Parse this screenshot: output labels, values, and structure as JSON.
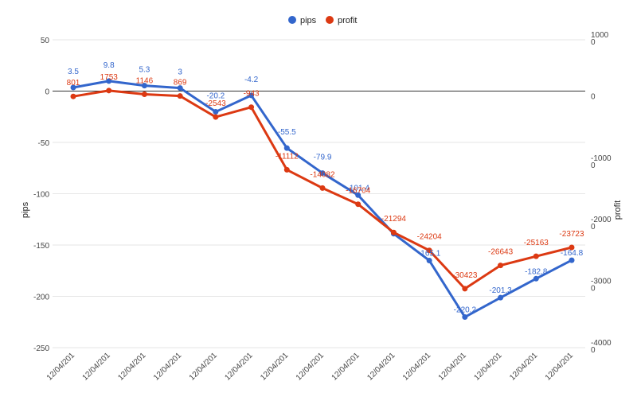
{
  "chart_data": {
    "type": "line",
    "title": "",
    "legend": {
      "position": "top-center",
      "items": [
        "pips",
        "profit"
      ]
    },
    "categories": [
      "12/04/201",
      "12/04/201",
      "12/04/201",
      "12/04/201",
      "12/04/201",
      "12/04/201",
      "12/04/201",
      "12/04/201",
      "12/04/201",
      "12/04/201",
      "12/04/201",
      "12/04/201",
      "12/04/201",
      "12/04/201",
      "12/04/201"
    ],
    "series": [
      {
        "name": "pips",
        "axis": "left",
        "color": "#3366cc",
        "values": [
          3.5,
          9.8,
          5.3,
          3,
          -20.2,
          -4.2,
          -55.5,
          -79.9,
          -101.4,
          -139,
          -165.1,
          -220.2,
          -201.3,
          -182.8,
          -164.8
        ],
        "labels": [
          "3.5",
          "9.8",
          "5.3",
          "3",
          "-20.2",
          "-4.2",
          "-55.5",
          "-79.9",
          "-101.4",
          "",
          "-165.1",
          "-220.2",
          "-201.3",
          "-182.8",
          "-164.8"
        ]
      },
      {
        "name": "profit",
        "axis": "right",
        "color": "#dc3912",
        "values": [
          801,
          1753,
          1146,
          869,
          -2543,
          -943,
          -11112,
          -14082,
          -16704,
          -21294,
          -24204,
          -30423,
          -26643,
          -25163,
          -23723
        ],
        "labels": [
          "801",
          "1753",
          "1146",
          "869",
          "-2543",
          "-943",
          "-11112",
          "-14082",
          "-16704",
          "-21294",
          "-24204",
          "-30423",
          "-26643",
          "-25163",
          "-23723"
        ]
      }
    ],
    "y_left": {
      "label": "pips",
      "ticks": [
        "50",
        "0",
        "-50",
        "-100",
        "-150",
        "-200",
        "-250"
      ],
      "tick_values": [
        50,
        0,
        -50,
        -100,
        -150,
        -200,
        -250
      ],
      "ylim": [
        -250,
        50
      ]
    },
    "y_right": {
      "label": "profit",
      "ticks": [
        "1000\n0",
        "0",
        "-1000\n0",
        "-2000\n0",
        "-3000\n0",
        "-4000\n0"
      ],
      "tick_values": [
        10000,
        0,
        -10000,
        -20000,
        -30000,
        -40000
      ],
      "ylim": [
        -40000,
        10000
      ]
    },
    "grid": true,
    "zero_line": true
  }
}
